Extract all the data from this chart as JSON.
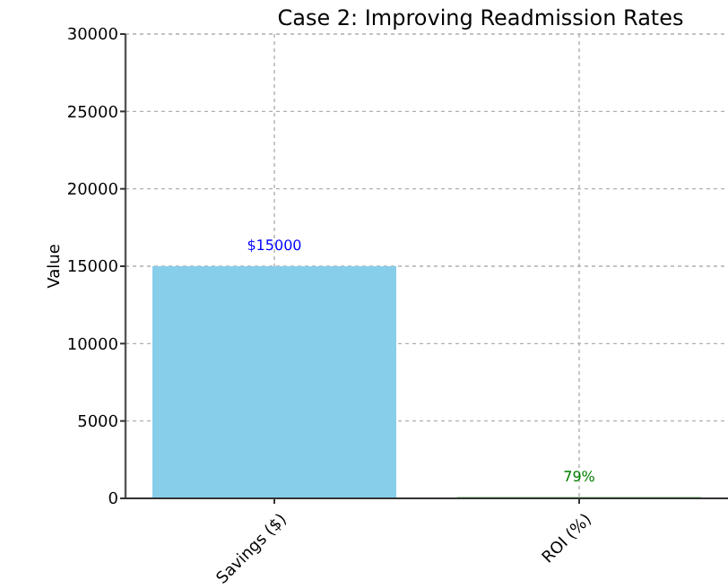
{
  "chart_data": {
    "type": "bar",
    "title": "Case 2: Improving Readmission Rates",
    "ylabel": "Value",
    "categories": [
      "Savings ($)",
      "ROI (%)"
    ],
    "values": [
      15000,
      79
    ],
    "colors": [
      "#87ceeb",
      "#2ca02c"
    ],
    "value_labels": [
      "$15000",
      "79%"
    ],
    "ylim": [
      0,
      30000
    ],
    "yticks": [
      0,
      5000,
      10000,
      15000,
      20000,
      25000,
      30000
    ],
    "grid": true
  }
}
